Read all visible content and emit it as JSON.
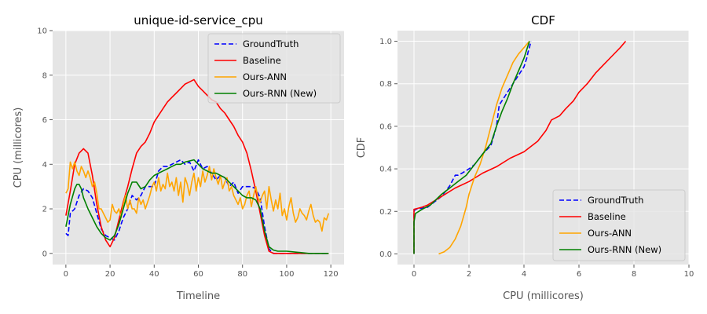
{
  "chart_data": [
    {
      "type": "line",
      "title": "unique-id-service_cpu",
      "xlabel": "Timeline",
      "ylabel": "CPU (millicores)",
      "xlim": [
        -6,
        126
      ],
      "ylim": [
        -0.5,
        10
      ],
      "xticks": [
        "0",
        "20",
        "40",
        "60",
        "80",
        "100",
        "120"
      ],
      "yticks": [
        "0",
        "2",
        "4",
        "6",
        "8",
        "10"
      ],
      "grid": true,
      "legend": "top-right",
      "series": [
        {
          "name": "GroundTruth",
          "color": "#0000ff",
          "dash": "dashed",
          "x": [
            0,
            1,
            2,
            4,
            6,
            8,
            10,
            12,
            14,
            16,
            18,
            20,
            22,
            24,
            26,
            28,
            30,
            32,
            34,
            36,
            38,
            40,
            42,
            44,
            46,
            48,
            50,
            52,
            54,
            56,
            58,
            60,
            62,
            64,
            66,
            68,
            70,
            72,
            74,
            76,
            78,
            80,
            82,
            84,
            86,
            88,
            90,
            92,
            94,
            96,
            100,
            105,
            110,
            115,
            119
          ],
          "y": [
            0.9,
            0.8,
            1.8,
            2.0,
            2.6,
            2.9,
            2.8,
            2.5,
            1.8,
            1.1,
            0.8,
            0.7,
            0.6,
            1.0,
            1.6,
            2.0,
            2.6,
            2.4,
            2.6,
            3.0,
            3.0,
            3.0,
            3.7,
            3.9,
            3.9,
            4.0,
            4.1,
            4.2,
            4.0,
            4.1,
            3.7,
            4.2,
            3.8,
            3.9,
            3.6,
            3.3,
            3.5,
            3.4,
            3.0,
            3.2,
            2.7,
            3.0,
            3.0,
            3.0,
            2.9,
            2.5,
            1.2,
            0.2,
            0.0,
            0.0,
            0.0,
            0.0,
            0.0,
            0.0,
            0.0
          ]
        },
        {
          "name": "Baseline",
          "color": "#ff0000",
          "dash": "solid",
          "x": [
            0,
            2,
            4,
            6,
            8,
            10,
            12,
            14,
            16,
            18,
            20,
            22,
            24,
            26,
            28,
            30,
            32,
            34,
            36,
            38,
            40,
            42,
            44,
            46,
            48,
            50,
            52,
            54,
            56,
            58,
            60,
            62,
            64,
            66,
            68,
            70,
            72,
            74,
            76,
            78,
            80,
            82,
            84,
            86,
            88,
            90,
            92,
            94,
            96,
            100,
            105,
            110,
            115,
            119
          ],
          "y": [
            1.7,
            2.8,
            4.0,
            4.5,
            4.7,
            4.5,
            3.5,
            2.2,
            1.2,
            0.6,
            0.3,
            0.7,
            1.5,
            2.3,
            3.0,
            3.8,
            4.5,
            4.8,
            5.0,
            5.4,
            5.9,
            6.2,
            6.5,
            6.8,
            7.0,
            7.2,
            7.4,
            7.6,
            7.7,
            7.8,
            7.5,
            7.3,
            7.1,
            6.9,
            6.8,
            6.5,
            6.3,
            6.0,
            5.7,
            5.3,
            5.0,
            4.5,
            3.7,
            2.8,
            1.8,
            0.8,
            0.1,
            0.0,
            0.0,
            0.0,
            0.0,
            0.0,
            0.0,
            0.0
          ]
        },
        {
          "name": "Ours-ANN",
          "color": "#ffa500",
          "dash": "solid",
          "x": [
            0,
            1,
            2,
            3,
            4,
            5,
            6,
            7,
            8,
            9,
            10,
            11,
            12,
            13,
            14,
            15,
            16,
            17,
            18,
            19,
            20,
            21,
            22,
            23,
            24,
            25,
            26,
            27,
            28,
            29,
            30,
            31,
            32,
            33,
            34,
            35,
            36,
            37,
            38,
            39,
            40,
            41,
            42,
            43,
            44,
            45,
            46,
            47,
            48,
            49,
            50,
            51,
            52,
            53,
            54,
            55,
            56,
            57,
            58,
            59,
            60,
            61,
            62,
            63,
            64,
            65,
            66,
            67,
            68,
            69,
            70,
            71,
            72,
            73,
            74,
            75,
            76,
            77,
            78,
            79,
            80,
            81,
            82,
            83,
            84,
            85,
            86,
            87,
            88,
            89,
            90,
            91,
            92,
            93,
            94,
            95,
            96,
            97,
            98,
            99,
            100,
            101,
            102,
            103,
            104,
            105,
            106,
            107,
            108,
            109,
            110,
            111,
            112,
            113,
            114,
            115,
            116,
            117,
            118,
            119
          ],
          "y": [
            2.7,
            2.9,
            4.1,
            3.8,
            4.1,
            3.7,
            3.5,
            3.9,
            3.7,
            3.4,
            3.7,
            3.4,
            3.0,
            3.2,
            2.7,
            2.0,
            2.0,
            1.8,
            1.6,
            1.4,
            1.5,
            2.2,
            1.9,
            1.8,
            2.0,
            1.6,
            2.2,
            2.6,
            2.0,
            2.4,
            2.0,
            2.0,
            1.8,
            2.5,
            2.2,
            2.4,
            2.0,
            2.3,
            2.6,
            3.0,
            3.2,
            2.8,
            3.4,
            2.8,
            3.1,
            2.9,
            3.6,
            3.0,
            3.2,
            2.8,
            3.4,
            2.6,
            3.2,
            2.3,
            3.4,
            3.1,
            2.6,
            3.2,
            3.6,
            2.8,
            3.4,
            3.0,
            3.7,
            3.2,
            3.5,
            3.9,
            3.3,
            3.8,
            3.4,
            3.1,
            3.5,
            2.9,
            3.2,
            3.4,
            2.8,
            3.0,
            2.6,
            2.4,
            2.2,
            2.5,
            2.0,
            2.2,
            2.6,
            2.8,
            2.1,
            2.6,
            3.0,
            2.5,
            2.3,
            2.6,
            2.8,
            2.0,
            3.0,
            2.4,
            1.9,
            2.4,
            2.0,
            2.7,
            1.7,
            2.0,
            1.5,
            2.1,
            2.5,
            1.8,
            1.4,
            1.6,
            2.0,
            1.8,
            1.7,
            1.5,
            1.9,
            2.2,
            1.7,
            1.4,
            1.5,
            1.4,
            1.0,
            1.6,
            1.5,
            1.8
          ]
        },
        {
          "name": "Ours-RNN (New)",
          "color": "#008000",
          "dash": "solid",
          "x": [
            0,
            2,
            4,
            5,
            6,
            7,
            8,
            10,
            12,
            14,
            16,
            18,
            20,
            22,
            24,
            26,
            28,
            30,
            32,
            34,
            36,
            38,
            40,
            42,
            44,
            46,
            48,
            50,
            52,
            54,
            56,
            58,
            60,
            62,
            64,
            66,
            68,
            70,
            72,
            74,
            76,
            78,
            80,
            82,
            84,
            86,
            88,
            90,
            92,
            94,
            96,
            100,
            105,
            110,
            115,
            119
          ],
          "y": [
            1.2,
            2.2,
            2.9,
            3.1,
            3.1,
            2.9,
            2.5,
            2.0,
            1.6,
            1.2,
            0.9,
            0.7,
            0.6,
            0.8,
            1.3,
            2.0,
            2.7,
            3.2,
            3.2,
            2.9,
            3.0,
            3.3,
            3.5,
            3.6,
            3.7,
            3.8,
            3.9,
            4.0,
            4.0,
            4.1,
            4.15,
            4.2,
            4.0,
            3.8,
            3.7,
            3.6,
            3.6,
            3.5,
            3.4,
            3.2,
            3.0,
            2.8,
            2.6,
            2.5,
            2.5,
            2.4,
            2.0,
            1.0,
            0.3,
            0.15,
            0.1,
            0.1,
            0.05,
            0.0,
            0.0,
            0.0
          ]
        }
      ]
    },
    {
      "type": "line",
      "title": "CDF",
      "xlabel": "CPU (millicores)",
      "ylabel": "CDF",
      "xlim": [
        -0.6,
        10
      ],
      "ylim": [
        -0.05,
        1.05
      ],
      "xticks": [
        "0",
        "2",
        "4",
        "6",
        "8",
        "10"
      ],
      "yticks": [
        "0.0",
        "0.2",
        "0.4",
        "0.6",
        "0.8",
        "1.0"
      ],
      "grid": true,
      "legend": "bottom-right",
      "series": [
        {
          "name": "GroundTruth",
          "color": "#0000ff",
          "dash": "dashed",
          "x": [
            0.0,
            0.0,
            0.05,
            0.5,
            0.7,
            1.0,
            1.3,
            1.5,
            1.6,
            1.75,
            2.0,
            2.2,
            2.5,
            2.8,
            3.0,
            3.1,
            3.3,
            3.5,
            3.7,
            3.9,
            4.0,
            4.1,
            4.15,
            4.2,
            4.25
          ],
          "y": [
            0.0,
            0.2,
            0.21,
            0.22,
            0.24,
            0.27,
            0.32,
            0.37,
            0.37,
            0.38,
            0.4,
            0.42,
            0.47,
            0.51,
            0.6,
            0.7,
            0.74,
            0.78,
            0.82,
            0.86,
            0.88,
            0.92,
            0.95,
            0.97,
            1.0
          ]
        },
        {
          "name": "Baseline",
          "color": "#ff0000",
          "dash": "solid",
          "x": [
            0.0,
            0.0,
            0.3,
            0.5,
            1.0,
            1.5,
            2.0,
            2.5,
            3.0,
            3.5,
            4.0,
            4.5,
            4.8,
            5.0,
            5.3,
            5.5,
            5.8,
            6.0,
            6.3,
            6.6,
            6.9,
            7.2,
            7.5,
            7.7
          ],
          "y": [
            0.0,
            0.21,
            0.22,
            0.23,
            0.27,
            0.31,
            0.34,
            0.38,
            0.41,
            0.45,
            0.48,
            0.53,
            0.58,
            0.63,
            0.65,
            0.68,
            0.72,
            0.76,
            0.8,
            0.85,
            0.89,
            0.93,
            0.97,
            1.0
          ]
        },
        {
          "name": "Ours-ANN",
          "color": "#ffa500",
          "dash": "solid",
          "x": [
            0.9,
            1.1,
            1.3,
            1.5,
            1.7,
            1.9,
            2.0,
            2.2,
            2.4,
            2.6,
            2.8,
            3.0,
            3.2,
            3.4,
            3.6,
            3.8,
            4.0,
            4.2
          ],
          "y": [
            0.0,
            0.01,
            0.03,
            0.07,
            0.13,
            0.22,
            0.28,
            0.36,
            0.42,
            0.5,
            0.6,
            0.7,
            0.78,
            0.84,
            0.9,
            0.94,
            0.97,
            1.0
          ]
        },
        {
          "name": "Ours-RNN (New)",
          "color": "#008000",
          "dash": "solid",
          "x": [
            0.0,
            0.0,
            0.05,
            0.3,
            0.6,
            1.0,
            1.3,
            1.6,
            1.9,
            2.2,
            2.5,
            2.8,
            3.0,
            3.2,
            3.4,
            3.6,
            3.8,
            4.0,
            4.1,
            4.2
          ],
          "y": [
            0.0,
            0.15,
            0.19,
            0.21,
            0.23,
            0.28,
            0.31,
            0.34,
            0.37,
            0.42,
            0.47,
            0.52,
            0.6,
            0.67,
            0.73,
            0.8,
            0.86,
            0.92,
            0.96,
            1.0
          ]
        }
      ]
    }
  ]
}
